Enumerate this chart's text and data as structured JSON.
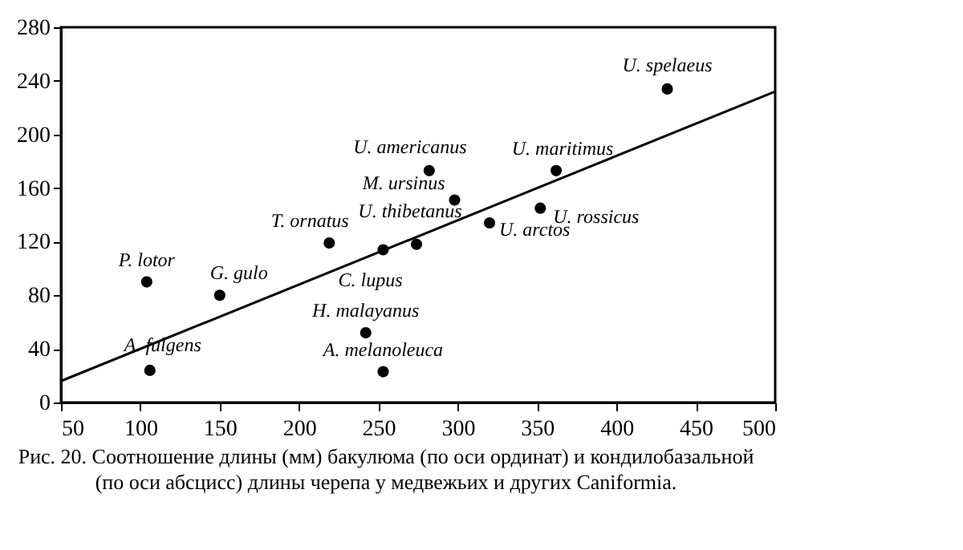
{
  "chart_data": {
    "type": "scatter",
    "xlim": [
      50,
      500
    ],
    "ylim": [
      0,
      280
    ],
    "xticks": [
      50,
      100,
      150,
      200,
      250,
      300,
      350,
      400,
      450,
      500
    ],
    "yticks": [
      0,
      40,
      80,
      120,
      160,
      200,
      240,
      280
    ],
    "grid": false,
    "marker": "circle",
    "series": [
      {
        "type": "scatter",
        "color": "#000000",
        "x": [
          104,
          150,
          106,
          219,
          242,
          253,
          253,
          274,
          282,
          298,
          320,
          352,
          362,
          432
        ],
        "values": [
          90,
          80,
          24,
          119,
          52,
          23,
          114,
          118,
          173,
          151,
          134,
          145,
          173,
          234
        ]
      },
      {
        "type": "line",
        "marker": "none",
        "color": "#000000",
        "x": [
          50,
          500
        ],
        "values": [
          16,
          232
        ]
      }
    ],
    "annotations": [
      {
        "text": "P. lotor",
        "x": 104,
        "y": 90
      },
      {
        "text": "G. gulo",
        "x": 150,
        "y": 80
      },
      {
        "text": "A. fulgens",
        "x": 106,
        "y": 24
      },
      {
        "text": "T. ornatus",
        "x": 219,
        "y": 119
      },
      {
        "text": "H. malayanus",
        "x": 242,
        "y": 52
      },
      {
        "text": "A. melanoleuca",
        "x": 253,
        "y": 23
      },
      {
        "text": "C. lupus",
        "x": 253,
        "y": 114
      },
      {
        "text": "U. thibetanus",
        "x": 274,
        "y": 118
      },
      {
        "text": "U. americanus",
        "x": 282,
        "y": 173
      },
      {
        "text": "M. ursinus",
        "x": 298,
        "y": 151
      },
      {
        "text": "U. arctos",
        "x": 320,
        "y": 134
      },
      {
        "text": "U. rossicus",
        "x": 352,
        "y": 145
      },
      {
        "text": "U. maritimus",
        "x": 362,
        "y": 173
      },
      {
        "text": "U. spelaeus",
        "x": 432,
        "y": 234
      },
      "Рис. 20. Соотношение длины (мм) бакулюма (по оси ординат) и кондилобазальной",
      "(по оси абсцисс) длины черепа у медвежьих и других Caniformia."
    ]
  }
}
